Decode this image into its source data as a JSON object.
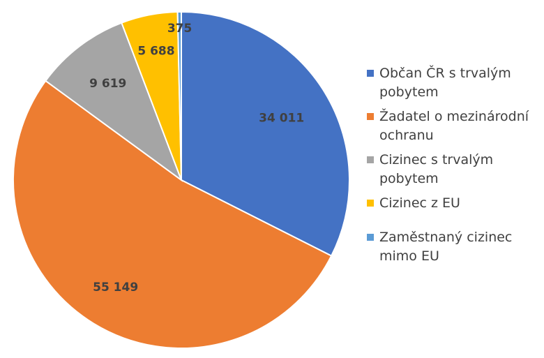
{
  "chart_data": {
    "type": "pie",
    "title": "",
    "legend_position": "right",
    "slices": [
      {
        "label": "Občan ČR s trvalým pobytem",
        "value": 34011,
        "display": "34 011",
        "color": "#4472C4"
      },
      {
        "label": "Žadatel o mezinárodní ochranu",
        "value": 55149,
        "display": "55 149",
        "color": "#ED7D31"
      },
      {
        "label": "Cizinec s trvalým pobytem",
        "value": 9619,
        "display": "9 619",
        "color": "#A5A5A5"
      },
      {
        "label": "Cizinec z EU",
        "value": 5688,
        "display": "5 688",
        "color": "#FFC000"
      },
      {
        "label": "Zaměstnaný cizinec mimo EU",
        "value": 375,
        "display": "375",
        "color": "#5B9BD5"
      }
    ]
  }
}
